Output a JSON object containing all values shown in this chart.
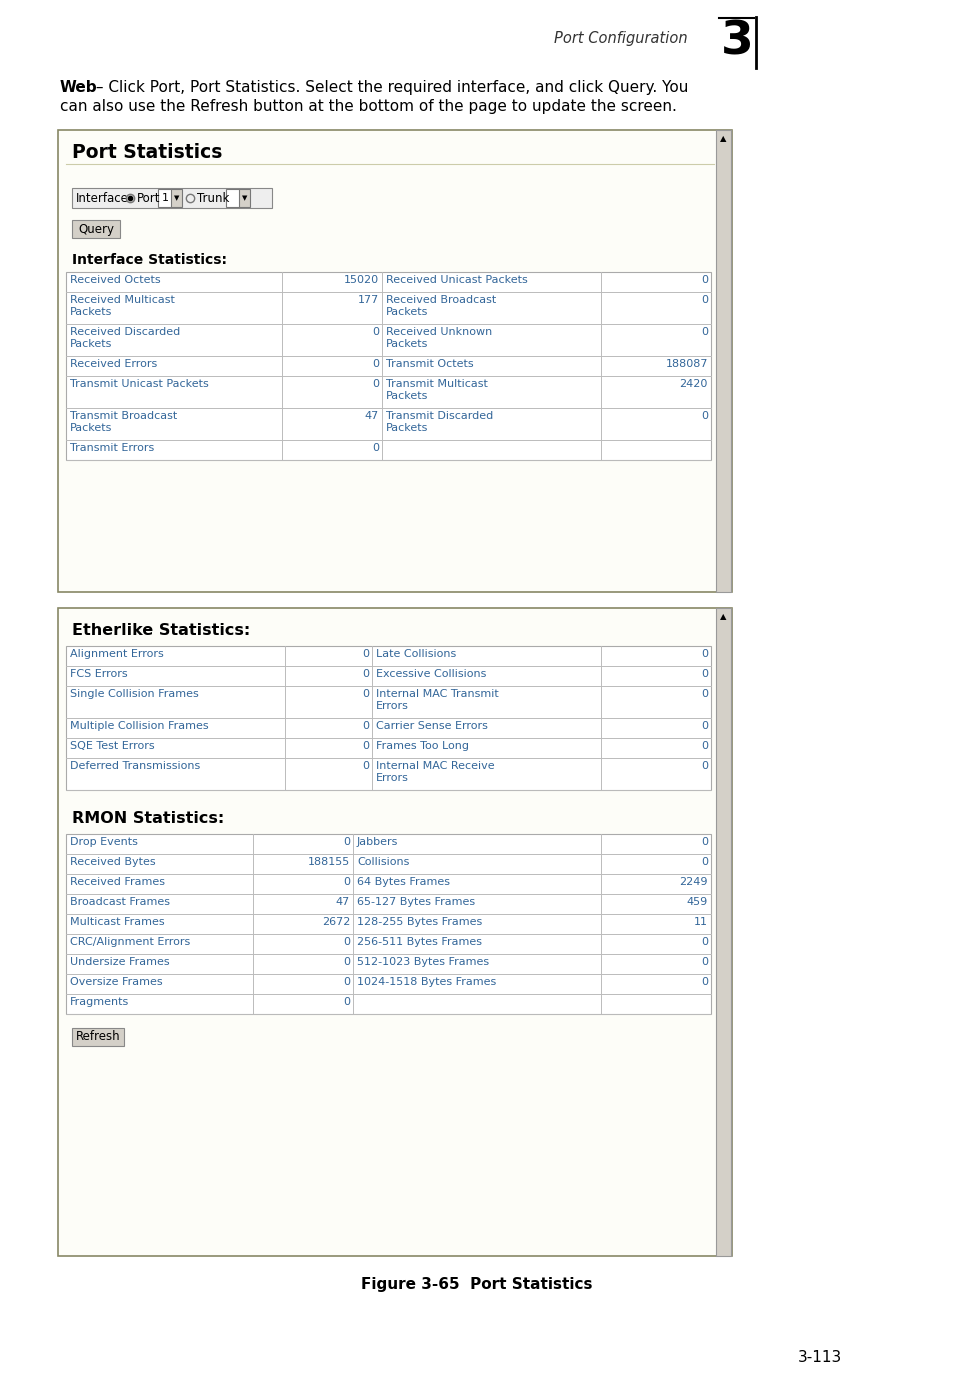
{
  "page_header": "Port Configuration",
  "chapter_num": "3",
  "intro_line1": "Web – Click Port, Port Statistics. Select the required interface, and click Query. You",
  "intro_line2": "can also use the Refresh button at the bottom of the page to update the screen.",
  "figure_caption": "Figure 3-65  Port Statistics",
  "page_number": "3-113",
  "panel1_title": "Port Statistics",
  "panel1_section": "Interface Statistics:",
  "panel1_table": [
    [
      "Received Octets",
      "15020",
      "Received Unicast Packets",
      "0"
    ],
    [
      "Received Multicast\nPackets",
      "177",
      "Received Broadcast\nPackets",
      "0"
    ],
    [
      "Received Discarded\nPackets",
      "0",
      "Received Unknown\nPackets",
      "0"
    ],
    [
      "Received Errors",
      "0",
      "Transmit Octets",
      "188087"
    ],
    [
      "Transmit Unicast Packets",
      "0",
      "Transmit Multicast\nPackets",
      "2420"
    ],
    [
      "Transmit Broadcast\nPackets",
      "47",
      "Transmit Discarded\nPackets",
      "0"
    ],
    [
      "Transmit Errors",
      "0",
      "",
      ""
    ]
  ],
  "panel1_table_row_heights": [
    20,
    32,
    32,
    20,
    32,
    32,
    20
  ],
  "panel2_title": "Etherlike Statistics:",
  "panel2_table": [
    [
      "Alignment Errors",
      "0",
      "Late Collisions",
      "0"
    ],
    [
      "FCS Errors",
      "0",
      "Excessive Collisions",
      "0"
    ],
    [
      "Single Collision Frames",
      "0",
      "Internal MAC Transmit\nErrors",
      "0"
    ],
    [
      "Multiple Collision Frames",
      "0",
      "Carrier Sense Errors",
      "0"
    ],
    [
      "SQE Test Errors",
      "0",
      "Frames Too Long",
      "0"
    ],
    [
      "Deferred Transmissions",
      "0",
      "Internal MAC Receive\nErrors",
      "0"
    ]
  ],
  "panel2_table_row_heights": [
    20,
    20,
    32,
    20,
    20,
    32
  ],
  "panel3_title": "RMON Statistics:",
  "panel3_table": [
    [
      "Drop Events",
      "0",
      "Jabbers",
      "0"
    ],
    [
      "Received Bytes",
      "188155",
      "Collisions",
      "0"
    ],
    [
      "Received Frames",
      "0",
      "64 Bytes Frames",
      "2249"
    ],
    [
      "Broadcast Frames",
      "47",
      "65-127 Bytes Frames",
      "459"
    ],
    [
      "Multicast Frames",
      "2672",
      "128-255 Bytes Frames",
      "11"
    ],
    [
      "CRC/Alignment Errors",
      "0",
      "256-511 Bytes Frames",
      "0"
    ],
    [
      "Undersize Frames",
      "0",
      "512-1023 Bytes Frames",
      "0"
    ],
    [
      "Oversize Frames",
      "0",
      "1024-1518 Bytes Frames",
      "0"
    ],
    [
      "Fragments",
      "0",
      "",
      ""
    ]
  ],
  "panel3_table_row_heights": [
    20,
    20,
    20,
    20,
    20,
    20,
    20,
    20,
    20
  ],
  "bg_color": "#ffffff",
  "panel_border_color": "#888866",
  "panel_bg": "#fdfdf8",
  "table_line_color": "#bbbbbb",
  "table_text_color": "#336699",
  "black": "#000000"
}
